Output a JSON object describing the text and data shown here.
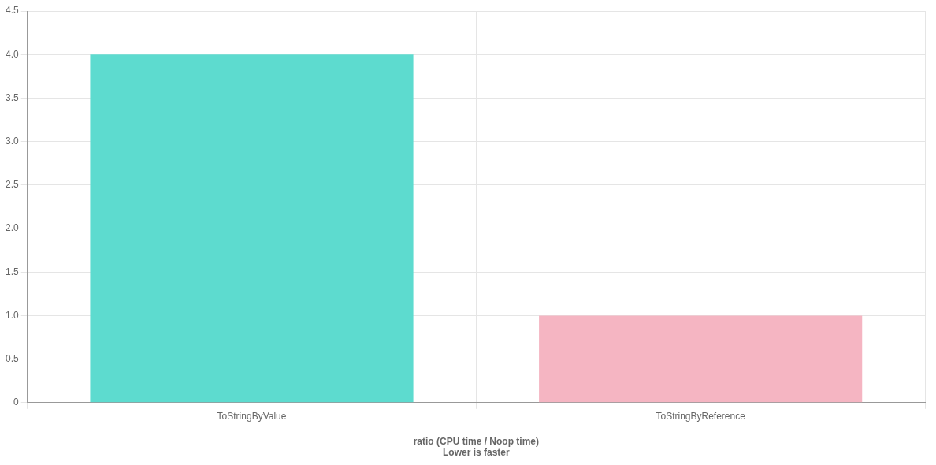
{
  "chart_data": {
    "type": "bar",
    "categories": [
      "ToStringByValue",
      "ToStringByReference"
    ],
    "values": [
      4.0,
      1.0
    ],
    "colors": [
      "#5ddbcf",
      "#f5b5c2"
    ],
    "xlabel": "ratio (CPU time / Noop time)\nLower is faster",
    "ylim": [
      0,
      4.5
    ],
    "yticks": [
      0,
      0.5,
      {
        "value": 1,
        "label": "1.0"
      },
      1.5,
      {
        "value": 2,
        "label": "2.0"
      },
      2.5,
      {
        "value": 3,
        "label": "3.0"
      },
      3.5,
      {
        "value": 4,
        "label": "4.0"
      },
      4.5
    ],
    "grid": true,
    "legend": false
  }
}
